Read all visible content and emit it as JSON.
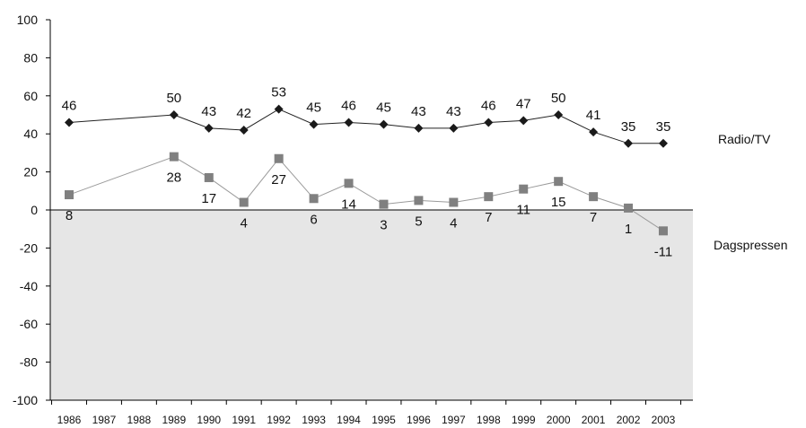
{
  "chart_data": {
    "type": "line",
    "title": "",
    "xlabel": "",
    "ylabel": "",
    "ylim": [
      -100,
      100
    ],
    "yticks": [
      100,
      80,
      60,
      40,
      20,
      0,
      -20,
      -40,
      -60,
      -80,
      -100
    ],
    "ytick_labels": [
      "100",
      "80",
      "60",
      "40",
      "20",
      "0",
      "-20",
      "-40",
      "-60",
      "-80",
      "-100"
    ],
    "x": [
      "1986",
      "1987",
      "1988",
      "1989",
      "1990",
      "1991",
      "1992",
      "1993",
      "1994",
      "1995",
      "1996",
      "1997",
      "1998",
      "1999",
      "2000",
      "2001",
      "2002",
      "2003"
    ],
    "negative_region_fill": "#e6e6e6",
    "grid": false,
    "series": [
      {
        "name": "Radio/TV",
        "marker": "diamond",
        "color": "#1a1a1a",
        "line_color": "#222222",
        "points": [
          {
            "x": "1986",
            "y": 46,
            "label": "46"
          },
          {
            "x": "1989",
            "y": 50,
            "label": "50"
          },
          {
            "x": "1990",
            "y": 43,
            "label": "43"
          },
          {
            "x": "1991",
            "y": 42,
            "label": "42"
          },
          {
            "x": "1992",
            "y": 53,
            "label": "53"
          },
          {
            "x": "1993",
            "y": 45,
            "label": "45"
          },
          {
            "x": "1994",
            "y": 46,
            "label": "46"
          },
          {
            "x": "1995",
            "y": 45,
            "label": "45"
          },
          {
            "x": "1996",
            "y": 43,
            "label": "43"
          },
          {
            "x": "1997",
            "y": 43,
            "label": "43"
          },
          {
            "x": "1998",
            "y": 46,
            "label": "46"
          },
          {
            "x": "1999",
            "y": 47,
            "label": "47"
          },
          {
            "x": "2000",
            "y": 50,
            "label": "50"
          },
          {
            "x": "2001",
            "y": 41,
            "label": "41"
          },
          {
            "x": "2002",
            "y": 35,
            "label": "35"
          },
          {
            "x": "2003",
            "y": 35,
            "label": "35"
          }
        ]
      },
      {
        "name": "Dagspressen",
        "marker": "square",
        "color": "#808080",
        "line_color": "#9a9a9a",
        "points": [
          {
            "x": "1986",
            "y": 8,
            "label": "8"
          },
          {
            "x": "1989",
            "y": 28,
            "label": "28"
          },
          {
            "x": "1990",
            "y": 17,
            "label": "17"
          },
          {
            "x": "1991",
            "y": 4,
            "label": "4"
          },
          {
            "x": "1992",
            "y": 27,
            "label": "27"
          },
          {
            "x": "1993",
            "y": 6,
            "label": "6"
          },
          {
            "x": "1994",
            "y": 14,
            "label": "14"
          },
          {
            "x": "1995",
            "y": 3,
            "label": "3"
          },
          {
            "x": "1996",
            "y": 5,
            "label": "5"
          },
          {
            "x": "1997",
            "y": 4,
            "label": "4"
          },
          {
            "x": "1998",
            "y": 7,
            "label": "7"
          },
          {
            "x": "1999",
            "y": 11,
            "label": "11"
          },
          {
            "x": "2000",
            "y": 15,
            "label": "15"
          },
          {
            "x": "2001",
            "y": 7,
            "label": "7"
          },
          {
            "x": "2002",
            "y": 1,
            "label": "1"
          },
          {
            "x": "2003",
            "y": -11,
            "label": "-11"
          }
        ]
      }
    ]
  }
}
